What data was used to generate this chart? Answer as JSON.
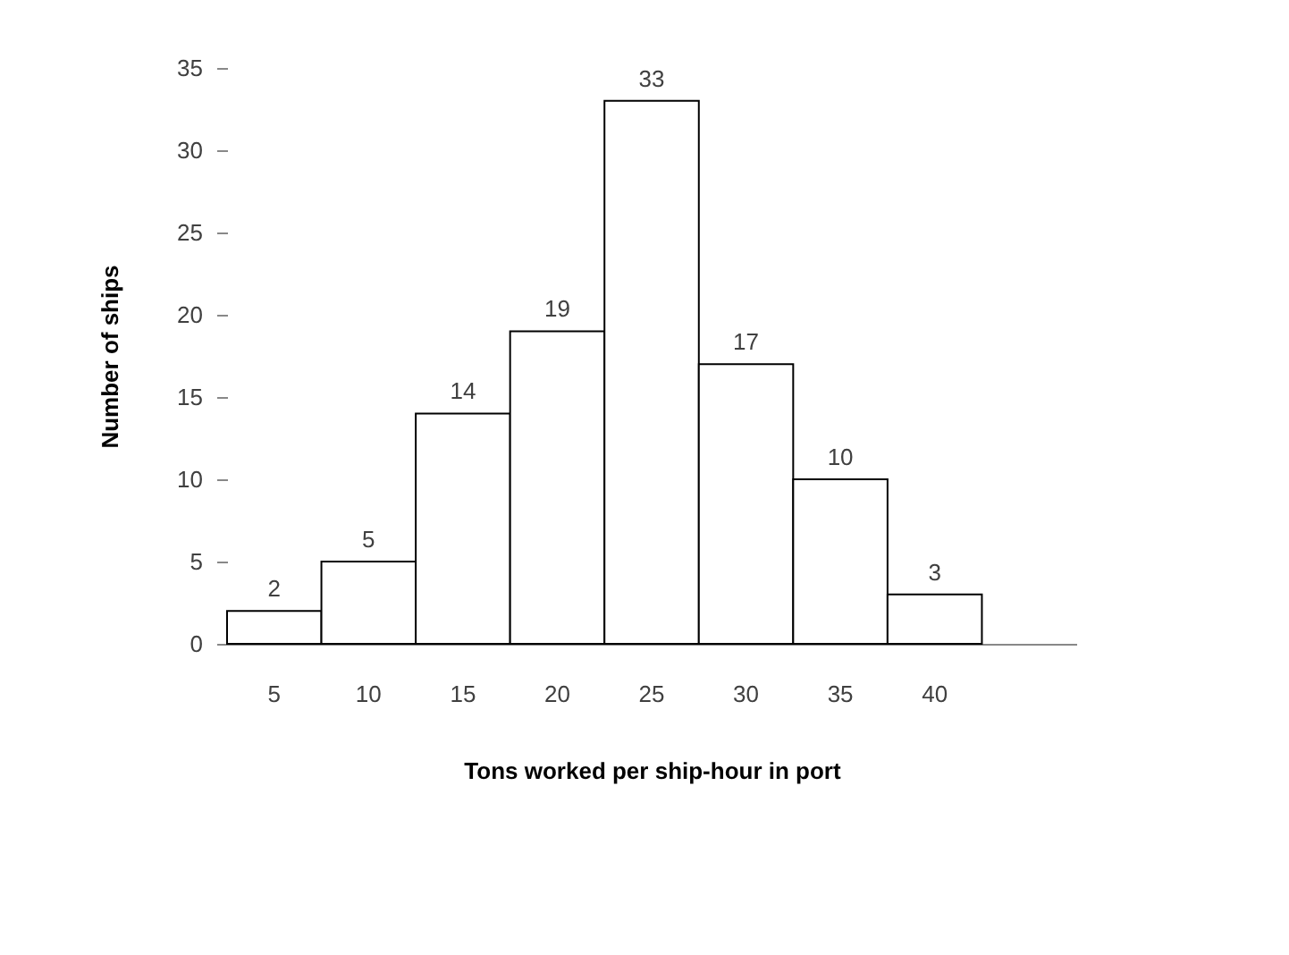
{
  "chart_data": {
    "type": "bar",
    "xlabel": "Tons worked per ship-hour in port",
    "ylabel": "Number of ships",
    "categories": [
      "5",
      "10",
      "15",
      "20",
      "25",
      "30",
      "35",
      "40",
      null
    ],
    "values": [
      2,
      5,
      14,
      19,
      33,
      17,
      10,
      3,
      null
    ],
    "color": "#ffffff",
    "ylim": [
      0,
      35
    ],
    "yticks": [
      0,
      5,
      10,
      15,
      20,
      25,
      30,
      35
    ],
    "grid": false,
    "data_labels": true
  }
}
